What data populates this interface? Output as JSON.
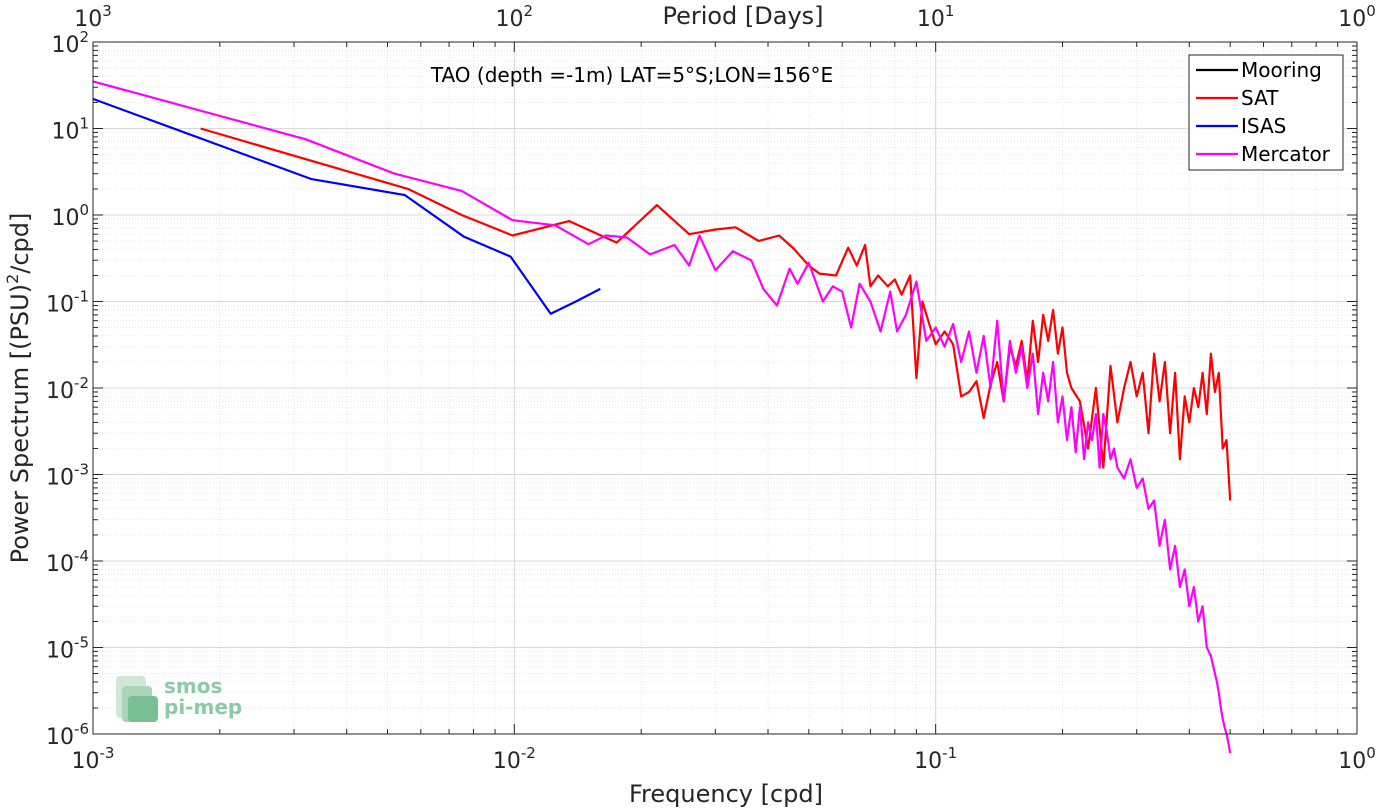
{
  "chart_data": {
    "type": "line",
    "title": "TAO (depth =-1m) LAT=5°S;LON=156°E",
    "xlabel": "Frequency [cpd]",
    "ylabel_parts": {
      "before": "Power Spectrum [(PSU)",
      "sup": "2",
      "after": "/cpd]"
    },
    "top_xlabel": "Period [Days]",
    "xscale": "log",
    "yscale": "log",
    "xlim": [
      0.001,
      1
    ],
    "ylim": [
      1e-06,
      100
    ],
    "grid": true,
    "legend_position": "top-right",
    "x_ticks": [
      {
        "value": 0.001,
        "base": "10",
        "exp": "-3"
      },
      {
        "value": 0.01,
        "base": "10",
        "exp": "-2"
      },
      {
        "value": 0.1,
        "base": "10",
        "exp": "-1"
      },
      {
        "value": 1,
        "base": "10",
        "exp": "0"
      }
    ],
    "top_ticks": [
      {
        "value": 0.001,
        "base": "10",
        "exp": "3"
      },
      {
        "value": 0.01,
        "base": "10",
        "exp": "2"
      },
      {
        "value": 0.1,
        "base": "10",
        "exp": "1"
      },
      {
        "value": 1,
        "base": "10",
        "exp": "0"
      }
    ],
    "y_ticks": [
      {
        "value": 100,
        "base": "10",
        "exp": "2"
      },
      {
        "value": 10,
        "base": "10",
        "exp": "1"
      },
      {
        "value": 1,
        "base": "10",
        "exp": "0"
      },
      {
        "value": 0.1,
        "base": "10",
        "exp": "-1"
      },
      {
        "value": 0.01,
        "base": "10",
        "exp": "-2"
      },
      {
        "value": 0.001,
        "base": "10",
        "exp": "-3"
      },
      {
        "value": 0.0001,
        "base": "10",
        "exp": "-4"
      },
      {
        "value": 1e-05,
        "base": "10",
        "exp": "-5"
      },
      {
        "value": 1e-06,
        "base": "10",
        "exp": "-6"
      }
    ],
    "series": [
      {
        "name": "Mooring",
        "color": "#000000",
        "x": [],
        "y": []
      },
      {
        "name": "SAT",
        "color": "#ff0000",
        "x": [
          0.0018,
          0.0056,
          0.0075,
          0.0099,
          0.0135,
          0.0175,
          0.0218,
          0.026,
          0.03,
          0.0335,
          0.038,
          0.0425,
          0.046,
          0.05,
          0.053,
          0.058,
          0.062,
          0.065,
          0.068,
          0.07,
          0.073,
          0.077,
          0.08,
          0.083,
          0.087,
          0.09,
          0.093,
          0.096,
          0.1,
          0.105,
          0.11,
          0.115,
          0.12,
          0.125,
          0.13,
          0.135,
          0.14,
          0.145,
          0.15,
          0.155,
          0.16,
          0.165,
          0.17,
          0.175,
          0.18,
          0.185,
          0.19,
          0.195,
          0.2,
          0.205,
          0.21,
          0.22,
          0.23,
          0.24,
          0.25,
          0.26,
          0.27,
          0.28,
          0.29,
          0.3,
          0.31,
          0.32,
          0.33,
          0.34,
          0.35,
          0.36,
          0.37,
          0.38,
          0.39,
          0.4,
          0.41,
          0.42,
          0.43,
          0.44,
          0.45,
          0.46,
          0.47,
          0.48,
          0.49,
          0.5
        ],
        "y": [
          10,
          2,
          1,
          0.58,
          0.85,
          0.48,
          1.3,
          0.6,
          0.68,
          0.72,
          0.5,
          0.58,
          0.41,
          0.26,
          0.21,
          0.2,
          0.42,
          0.26,
          0.45,
          0.15,
          0.2,
          0.15,
          0.18,
          0.12,
          0.2,
          0.013,
          0.1,
          0.06,
          0.032,
          0.045,
          0.032,
          0.008,
          0.009,
          0.012,
          0.0045,
          0.011,
          0.02,
          0.007,
          0.03,
          0.018,
          0.035,
          0.012,
          0.06,
          0.02,
          0.07,
          0.035,
          0.08,
          0.025,
          0.05,
          0.015,
          0.01,
          0.007,
          0.002,
          0.01,
          0.0012,
          0.018,
          0.004,
          0.01,
          0.02,
          0.008,
          0.015,
          0.003,
          0.025,
          0.007,
          0.02,
          0.003,
          0.015,
          0.0015,
          0.008,
          0.004,
          0.01,
          0.006,
          0.015,
          0.005,
          0.025,
          0.009,
          0.015,
          0.002,
          0.0025,
          0.0005
        ]
      },
      {
        "name": "ISAS",
        "color": "#0000ff",
        "x": [
          0.001,
          0.0033,
          0.0055,
          0.0076,
          0.0098,
          0.0122,
          0.014,
          0.016
        ],
        "y": [
          22,
          2.6,
          1.7,
          0.56,
          0.33,
          0.072,
          0.1,
          0.14
        ]
      },
      {
        "name": "Mercator",
        "color": "#ff00ff",
        "x": [
          0.001,
          0.0032,
          0.0052,
          0.0075,
          0.0099,
          0.0125,
          0.015,
          0.0165,
          0.0185,
          0.021,
          0.024,
          0.026,
          0.0275,
          0.03,
          0.033,
          0.0365,
          0.039,
          0.042,
          0.045,
          0.047,
          0.05,
          0.054,
          0.057,
          0.06,
          0.063,
          0.066,
          0.07,
          0.074,
          0.078,
          0.081,
          0.085,
          0.09,
          0.095,
          0.1,
          0.105,
          0.11,
          0.115,
          0.12,
          0.125,
          0.13,
          0.135,
          0.14,
          0.145,
          0.15,
          0.155,
          0.16,
          0.165,
          0.17,
          0.175,
          0.18,
          0.185,
          0.19,
          0.195,
          0.2,
          0.205,
          0.21,
          0.215,
          0.22,
          0.225,
          0.23,
          0.235,
          0.24,
          0.245,
          0.25,
          0.255,
          0.26,
          0.265,
          0.27,
          0.28,
          0.29,
          0.3,
          0.31,
          0.32,
          0.33,
          0.34,
          0.35,
          0.36,
          0.37,
          0.38,
          0.39,
          0.4,
          0.41,
          0.42,
          0.43,
          0.44,
          0.45,
          0.46,
          0.465,
          0.47,
          0.475,
          0.48,
          0.485,
          0.49,
          0.495,
          0.5
        ],
        "y": [
          35,
          7.5,
          3,
          1.9,
          0.87,
          0.76,
          0.46,
          0.58,
          0.55,
          0.35,
          0.45,
          0.26,
          0.58,
          0.23,
          0.38,
          0.3,
          0.14,
          0.09,
          0.24,
          0.16,
          0.28,
          0.1,
          0.15,
          0.13,
          0.05,
          0.16,
          0.1,
          0.045,
          0.13,
          0.045,
          0.07,
          0.17,
          0.035,
          0.05,
          0.03,
          0.055,
          0.02,
          0.045,
          0.015,
          0.04,
          0.01,
          0.06,
          0.007,
          0.035,
          0.015,
          0.03,
          0.01,
          0.025,
          0.005,
          0.015,
          0.007,
          0.02,
          0.004,
          0.008,
          0.0025,
          0.006,
          0.0018,
          0.006,
          0.0015,
          0.004,
          0.0025,
          0.005,
          0.0012,
          0.005,
          0.003,
          0.0015,
          0.002,
          0.0012,
          0.0009,
          0.0015,
          0.0007,
          0.0009,
          0.0004,
          0.0005,
          0.00015,
          0.0003,
          8e-05,
          0.00015,
          5e-05,
          8e-05,
          3e-05,
          5e-05,
          2e-05,
          3e-05,
          1e-05,
          8e-06,
          5e-06,
          4e-06,
          3e-06,
          2e-06,
          1.5e-06,
          1.2e-06,
          1e-06,
          8e-07,
          6e-07
        ]
      }
    ]
  },
  "logo": {
    "line1": "smos",
    "line2": "pi-mep"
  }
}
